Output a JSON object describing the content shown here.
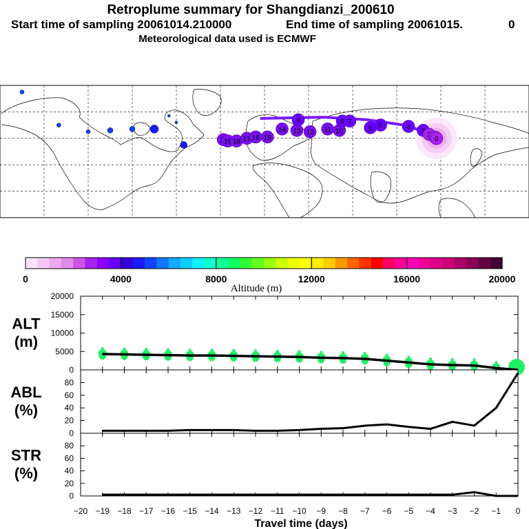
{
  "figure": {
    "title_line1": "Retroplume summary for Shangdianzi_200610",
    "title_line2_left": "Start time of sampling 20061014.210000",
    "title_line2_right": "End time of sampling 20061015.",
    "title_line2_tail": "0",
    "title_line3": "Meteorological data used is ECMWF"
  },
  "colorbar": {
    "tick_labels": [
      "0",
      "4000",
      "8000",
      "12000",
      "16000",
      "20000"
    ],
    "title": "Altitude (m)",
    "colors": [
      "#fbe3fb",
      "#f5c8f5",
      "#eeaaee",
      "#e088ea",
      "#cc55e6",
      "#aa22ee",
      "#8800ff",
      "#6a00ff",
      "#3300dd",
      "#1a1aff",
      "#1144ff",
      "#1177ff",
      "#11aaff",
      "#11ccff",
      "#11eeff",
      "#11ffcc",
      "#11ff99",
      "#11ff66",
      "#33ff33",
      "#66ff22",
      "#99ff11",
      "#ccff00",
      "#eeff00",
      "#ffff00",
      "#ffee00",
      "#ffcc00",
      "#ff9900",
      "#ff6600",
      "#ff3300",
      "#ff0000",
      "#ff0066",
      "#ff0099",
      "#ff00bb",
      "#ee0099",
      "#dd0088",
      "#cc0077",
      "#aa0066",
      "#880055",
      "#660044",
      "#440033"
    ]
  },
  "map": {
    "plume_points": [
      {
        "label": "20",
        "lon": -28,
        "lat": 39
      },
      {
        "label": "19",
        "lon": -25,
        "lat": 38
      },
      {
        "label": "18",
        "lon": -19,
        "lat": 38
      },
      {
        "label": "17",
        "lon": -12,
        "lat": 40
      },
      {
        "label": "16",
        "lon": -6,
        "lat": 41
      },
      {
        "label": "15",
        "lon": 2,
        "lat": 41
      },
      {
        "label": "14",
        "lon": 12,
        "lat": 47
      },
      {
        "label": "13",
        "lon": 22,
        "lat": 46
      },
      {
        "label": "12",
        "lon": 31,
        "lat": 45
      },
      {
        "label": "11",
        "lon": 43,
        "lat": 47
      },
      {
        "label": "10",
        "lon": 51,
        "lat": 46
      },
      {
        "label": "9",
        "lon": 23,
        "lat": 54
      },
      {
        "label": "8",
        "lon": 53,
        "lat": 53
      },
      {
        "label": "7",
        "lon": 58,
        "lat": 53
      },
      {
        "label": "6",
        "lon": 72,
        "lat": 48
      },
      {
        "label": "5",
        "lon": 79,
        "lat": 50
      },
      {
        "label": "4",
        "lon": 98,
        "lat": 49
      },
      {
        "label": "3",
        "lon": 108,
        "lat": 46
      },
      {
        "label": "2",
        "lon": 112,
        "lat": 43
      },
      {
        "label": "1",
        "lon": 116,
        "lat": 41
      },
      {
        "label": "0",
        "lon": 117,
        "lat": 40
      }
    ]
  },
  "chart_data": [
    {
      "type": "line",
      "panel_label": "ALT",
      "panel_unit": "(m)",
      "x": [
        -19,
        -18,
        -17,
        -16,
        -15,
        -14,
        -13,
        -12,
        -11,
        -10,
        -9,
        -8,
        -7,
        -6,
        -5,
        -4,
        -3,
        -2,
        -1,
        0
      ],
      "values": [
        4300,
        4200,
        4100,
        4000,
        3900,
        3900,
        3800,
        3700,
        3600,
        3500,
        3300,
        3200,
        3000,
        2500,
        2000,
        1500,
        1300,
        1200,
        500,
        0
      ],
      "xlim": [
        -20,
        0
      ],
      "ylim": [
        0,
        20000
      ],
      "yticks": [
        "0",
        "5000",
        "10000",
        "15000",
        "20000"
      ]
    },
    {
      "type": "line",
      "panel_label": "ABL",
      "panel_unit": "(%)",
      "x": [
        -19,
        -18,
        -17,
        -16,
        -15,
        -14,
        -13,
        -12,
        -11,
        -10,
        -9,
        -8,
        -7,
        -6,
        -5,
        -4,
        -3,
        -2,
        -1,
        0
      ],
      "values": [
        4,
        4,
        4,
        4,
        5,
        5,
        5,
        4,
        4,
        5,
        7,
        8,
        12,
        14,
        10,
        7,
        18,
        12,
        40,
        95
      ],
      "xlim": [
        -20,
        0
      ],
      "ylim": [
        0,
        100
      ],
      "yticks": [
        "0",
        "20",
        "40",
        "60",
        "80"
      ]
    },
    {
      "type": "line",
      "panel_label": "STR",
      "panel_unit": "(%)",
      "x": [
        -19,
        -18,
        -17,
        -16,
        -15,
        -14,
        -13,
        -12,
        -11,
        -10,
        -9,
        -8,
        -7,
        -6,
        -5,
        -4,
        -3,
        -2,
        -1,
        0
      ],
      "values": [
        2,
        2,
        2,
        2,
        2,
        2,
        2,
        2,
        2,
        2,
        2,
        2,
        2,
        2,
        2,
        2,
        2,
        6,
        0,
        0
      ],
      "xlim": [
        -20,
        0
      ],
      "ylim": [
        0,
        100
      ],
      "yticks": [
        "0",
        "20",
        "40",
        "60",
        "80"
      ]
    }
  ],
  "xaxis": {
    "label": "Travel time (days)",
    "tick_labels": [
      "−20",
      "−19",
      "−18",
      "−17",
      "−16",
      "−15",
      "−14",
      "−13",
      "−12",
      "−11",
      "−10",
      "−9",
      "−8",
      "−7",
      "−6",
      "−5",
      "−4",
      "−3",
      "−2",
      "−1",
      "0"
    ]
  }
}
